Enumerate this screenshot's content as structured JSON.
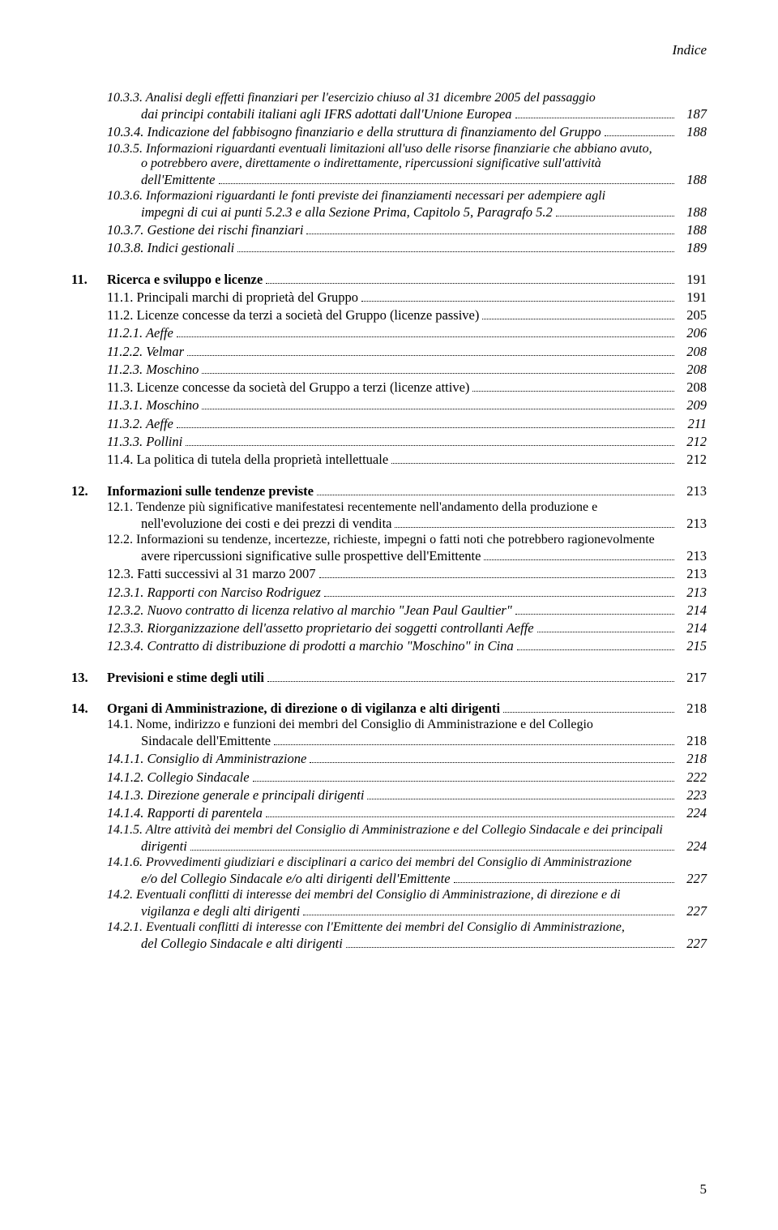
{
  "header": {
    "label": "Indice"
  },
  "footer": {
    "page_number": "5"
  },
  "typography": {
    "body_font": "Georgia, 'Times New Roman', serif",
    "body_size_pt": 12,
    "italic_entries": true,
    "text_color": "#000000",
    "background_color": "#ffffff"
  },
  "entries": {
    "e1": {
      "text": "10.3.3. Analisi degli effetti finanziari per l'esercizio chiuso al 31 dicembre 2005 del passaggio dai principi contabili italiani agli IFRS adottati dall'Unione Europea",
      "page": "187"
    },
    "e2": {
      "text": "10.3.4. Indicazione del fabbisogno finanziario e della struttura di finanziamento del Gruppo",
      "page": "188"
    },
    "e3": {
      "text": "10.3.5. Informazioni riguardanti eventuali limitazioni all'uso delle risorse finanziarie che abbiano avuto, o potrebbero avere, direttamente o indirettamente, ripercussioni significative sull'attività dell'Emittente",
      "page": "188"
    },
    "e4": {
      "text": "10.3.6. Informazioni riguardanti le fonti previste dei finanziamenti necessari per adempiere agli impegni di cui ai punti 5.2.3 e alla Sezione Prima, Capitolo 5, Paragrafo 5.2",
      "page": "188"
    },
    "e5": {
      "text": "10.3.7. Gestione dei rischi finanziari",
      "page": "188"
    },
    "e6": {
      "text": "10.3.8. Indici gestionali",
      "page": "189"
    }
  },
  "sec11": {
    "num": "11.",
    "title": "Ricerca e sviluppo e licenze",
    "page": "191",
    "s1": {
      "text": "11.1. Principali marchi di proprietà del Gruppo",
      "page": "191"
    },
    "s2": {
      "text": "11.2. Licenze concesse da terzi a società del Gruppo (licenze passive)",
      "page": "205"
    },
    "s2a": {
      "text": "11.2.1. Aeffe",
      "page": "206"
    },
    "s2b": {
      "text": "11.2.2. Velmar",
      "page": "208"
    },
    "s2c": {
      "text": "11.2.3. Moschino",
      "page": "208"
    },
    "s3": {
      "text": "11.3. Licenze concesse da società del Gruppo a terzi (licenze attive)",
      "page": "208"
    },
    "s3a": {
      "text": "11.3.1. Moschino",
      "page": "209"
    },
    "s3b": {
      "text": "11.3.2. Aeffe",
      "page": "211"
    },
    "s3c": {
      "text": "11.3.3. Pollini",
      "page": "212"
    },
    "s4": {
      "text": "11.4. La politica di tutela della proprietà intellettuale",
      "page": "212"
    }
  },
  "sec12": {
    "num": "12.",
    "title": "Informazioni sulle tendenze previste",
    "page": "213",
    "s1": {
      "text": "12.1. Tendenze più significative manifestatesi recentemente nell'andamento della produzione e nell'evoluzione dei costi e dei prezzi di vendita",
      "page": "213"
    },
    "s2": {
      "text": "12.2. Informazioni su tendenze, incertezze, richieste, impegni o fatti noti che potrebbero ragionevolmente avere ripercussioni significative sulle prospettive dell'Emittente",
      "page": "213"
    },
    "s3": {
      "text": "12.3. Fatti successivi al 31 marzo 2007",
      "page": "213"
    },
    "s3a": {
      "text": "12.3.1. Rapporti con Narciso Rodriguez",
      "page": "213"
    },
    "s3b": {
      "text": "12.3.2. Nuovo contratto di licenza relativo al marchio \"Jean Paul Gaultier\"",
      "page": "214"
    },
    "s3c": {
      "text": "12.3.3. Riorganizzazione dell'assetto proprietario dei soggetti controllanti Aeffe",
      "page": "214"
    },
    "s3d": {
      "text": "12.3.4. Contratto di distribuzione di prodotti a marchio \"Moschino\" in Cina",
      "page": "215"
    }
  },
  "sec13": {
    "num": "13.",
    "title": "Previsioni e stime degli utili",
    "page": "217"
  },
  "sec14": {
    "num": "14.",
    "title": "Organi di Amministrazione, di direzione o di vigilanza e alti dirigenti",
    "page": "218",
    "s1": {
      "text": "14.1. Nome, indirizzo e funzioni dei membri del Consiglio di Amministrazione e del Collegio Sindacale dell'Emittente",
      "page": "218"
    },
    "s1a": {
      "text": "14.1.1. Consiglio di Amministrazione",
      "page": "218"
    },
    "s1b": {
      "text": "14.1.2. Collegio Sindacale",
      "page": "222"
    },
    "s1c": {
      "text": "14.1.3. Direzione generale e principali dirigenti",
      "page": "223"
    },
    "s1d": {
      "text": "14.1.4. Rapporti di parentela",
      "page": "224"
    },
    "s1e": {
      "text": "14.1.5. Altre attività dei membri del Consiglio di Amministrazione e del Collegio Sindacale e dei principali dirigenti",
      "page": "224"
    },
    "s1f": {
      "text": "14.1.6. Provvedimenti giudiziari e disciplinari a carico dei membri del Consiglio di Amministrazione e/o del Collegio Sindacale e/o alti dirigenti dell'Emittente",
      "page": "227"
    },
    "s2": {
      "text": "14.2. Eventuali conflitti di interesse dei membri del Consiglio di Amministrazione, di direzione e di vigilanza e degli alti dirigenti",
      "page": "227"
    },
    "s2a": {
      "text": "14.2.1. Eventuali conflitti di interesse con l'Emittente dei membri del Consiglio di Amministrazione, del Collegio Sindacale e alti dirigenti",
      "page": "227"
    }
  }
}
